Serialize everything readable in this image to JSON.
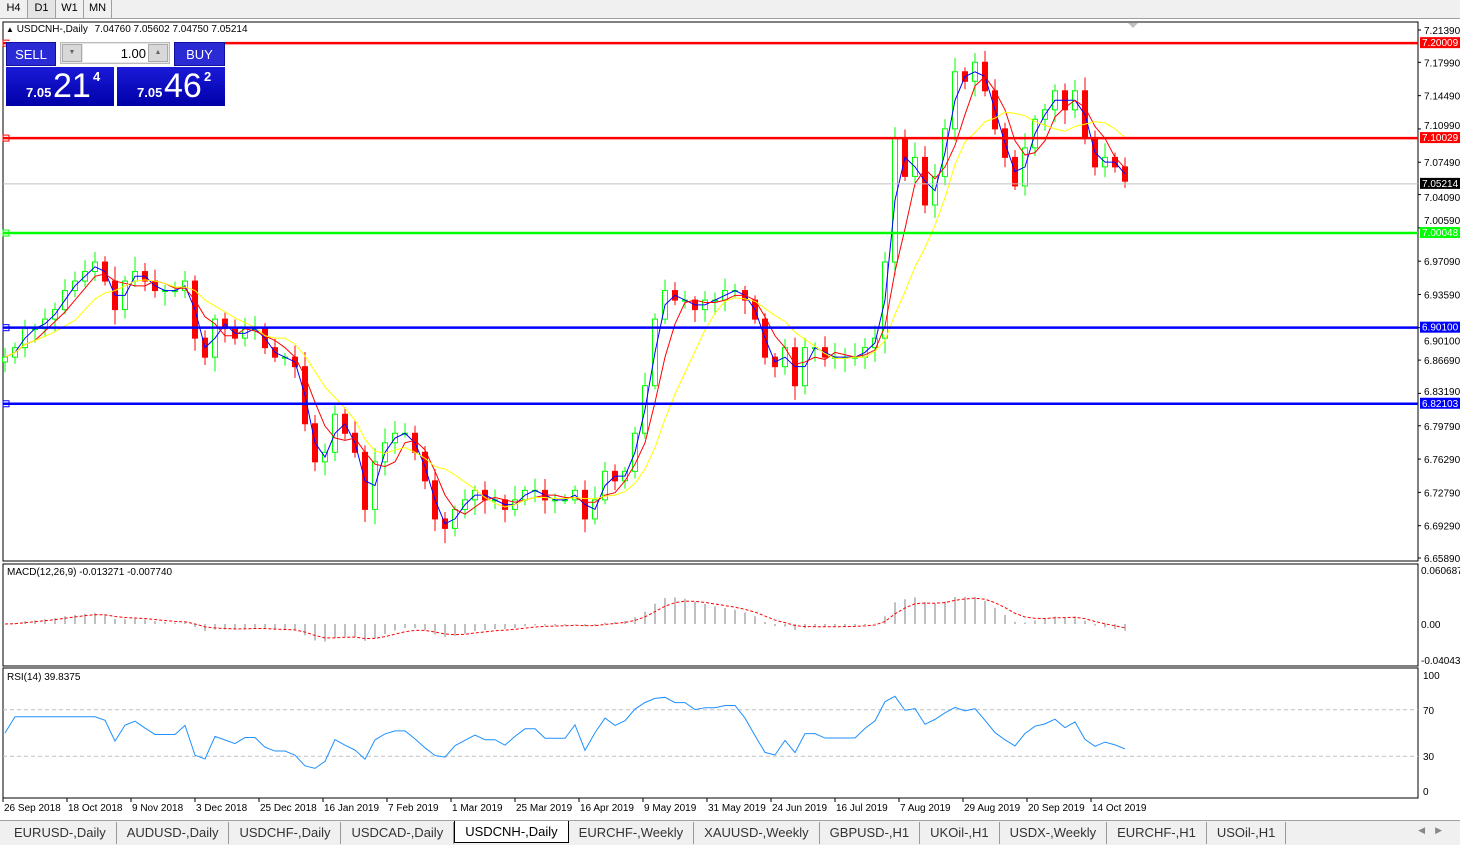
{
  "timeframes": [
    "H4",
    "D1",
    "W1",
    "MN"
  ],
  "active_timeframe": "D1",
  "chart": {
    "title": "USDCNH-,Daily",
    "ohlc": "7.04760 7.05602 7.04750 7.05214"
  },
  "trade_panel": {
    "sell_label": "SELL",
    "buy_label": "BUY",
    "lot": "1.00",
    "sell": {
      "big": "7.05",
      "main": "21",
      "small": "4"
    },
    "buy": {
      "big": "7.05",
      "main": "46",
      "small": "2"
    }
  },
  "colors": {
    "bull": "#00ff00",
    "bear": "#ff0000",
    "ma_fast": "#0000ff",
    "ma_mid": "#ff0000",
    "ma_slow": "#ffff00",
    "macd_hist": "#c0c0c0",
    "macd_signal": "#ff0000",
    "rsi": "#1e90ff"
  },
  "chart_data": [
    {
      "type": "candlestick",
      "symbol": "USDCNH-",
      "timeframe": "Daily",
      "ylim": [
        6.6589,
        7.2139
      ],
      "y_ticks": [
        "7.21390",
        "7.17990",
        "7.14490",
        "7.10990",
        "7.07490",
        "7.04090",
        "7.00590",
        "6.97090",
        "6.93590",
        "6.90100",
        "6.86690",
        "6.83190",
        "6.79790",
        "6.76290",
        "6.72790",
        "6.69290",
        "6.65890"
      ],
      "x_labels": [
        "26 Sep 2018",
        "18 Oct 2018",
        "9 Nov 2018",
        "3 Dec 2018",
        "25 Dec 2018",
        "16 Jan 2019",
        "7 Feb 2019",
        "1 Mar 2019",
        "25 Mar 2019",
        "16 Apr 2019",
        "9 May 2019",
        "31 May 2019",
        "24 Jun 2019",
        "16 Jul 2019",
        "7 Aug 2019",
        "29 Aug 2019",
        "20 Sep 2019",
        "14 Oct 2019"
      ],
      "closes": [
        6.87,
        6.88,
        6.9,
        6.9,
        6.91,
        6.92,
        6.94,
        6.95,
        6.96,
        6.97,
        6.95,
        6.92,
        6.95,
        6.96,
        6.95,
        6.94,
        6.94,
        6.94,
        6.95,
        6.89,
        6.87,
        6.91,
        6.9,
        6.89,
        6.9,
        6.9,
        6.88,
        6.87,
        6.87,
        6.86,
        6.8,
        6.76,
        6.77,
        6.81,
        6.79,
        6.77,
        6.71,
        6.76,
        6.78,
        6.79,
        6.79,
        6.77,
        6.74,
        6.7,
        6.69,
        6.71,
        6.72,
        6.73,
        6.72,
        6.72,
        6.71,
        6.72,
        6.73,
        6.73,
        6.72,
        6.72,
        6.72,
        6.73,
        6.7,
        6.72,
        6.75,
        6.74,
        6.75,
        6.79,
        6.84,
        6.91,
        6.94,
        6.93,
        6.93,
        6.92,
        6.93,
        6.93,
        6.94,
        6.94,
        6.93,
        6.91,
        6.87,
        6.86,
        6.88,
        6.84,
        6.88,
        6.88,
        6.87,
        6.87,
        6.87,
        6.87,
        6.88,
        6.89,
        6.97,
        7.1,
        7.06,
        7.08,
        7.03,
        7.06,
        7.11,
        7.17,
        7.16,
        7.18,
        7.15,
        7.11,
        7.08,
        7.05,
        7.09,
        7.12,
        7.13,
        7.15,
        7.13,
        7.15,
        7.1,
        7.07,
        7.08,
        7.07,
        7.055
      ],
      "levels": [
        {
          "value": "7.20009",
          "color": "#ff0000"
        },
        {
          "value": "7.10029",
          "color": "#ff0000"
        },
        {
          "value": "7.00048",
          "color": "#00ff00"
        },
        {
          "value": "6.90100",
          "color": "#0000ff"
        },
        {
          "value": "6.82103",
          "color": "#0000ff"
        }
      ],
      "current_price": "7.05214"
    },
    {
      "type": "macd",
      "label": "MACD(12,26,9) -0.013271 -0.007740",
      "ylim": [
        -0.040432,
        0.060687
      ],
      "y_ticks": [
        "0.060687",
        "0.00",
        "-0.040432"
      ]
    },
    {
      "type": "rsi",
      "label": "RSI(14) 39.8375",
      "ylim": [
        0,
        100
      ],
      "y_ticks": [
        "100",
        "70",
        "30",
        "0"
      ],
      "levels": [
        70,
        30
      ]
    }
  ],
  "symbol_tabs": [
    "EURUSD-,Daily",
    "AUDUSD-,Daily",
    "USDCHF-,Daily",
    "USDCAD-,Daily",
    "USDCNH-,Daily",
    "EURCHF-,Weekly",
    "XAUUSD-,Weekly",
    "GBPUSD-,H1",
    "UKOil-,H1",
    "USDX-,Weekly",
    "EURCHF-,H1",
    "USOil-,H1"
  ],
  "active_tab": "USDCNH-,Daily"
}
